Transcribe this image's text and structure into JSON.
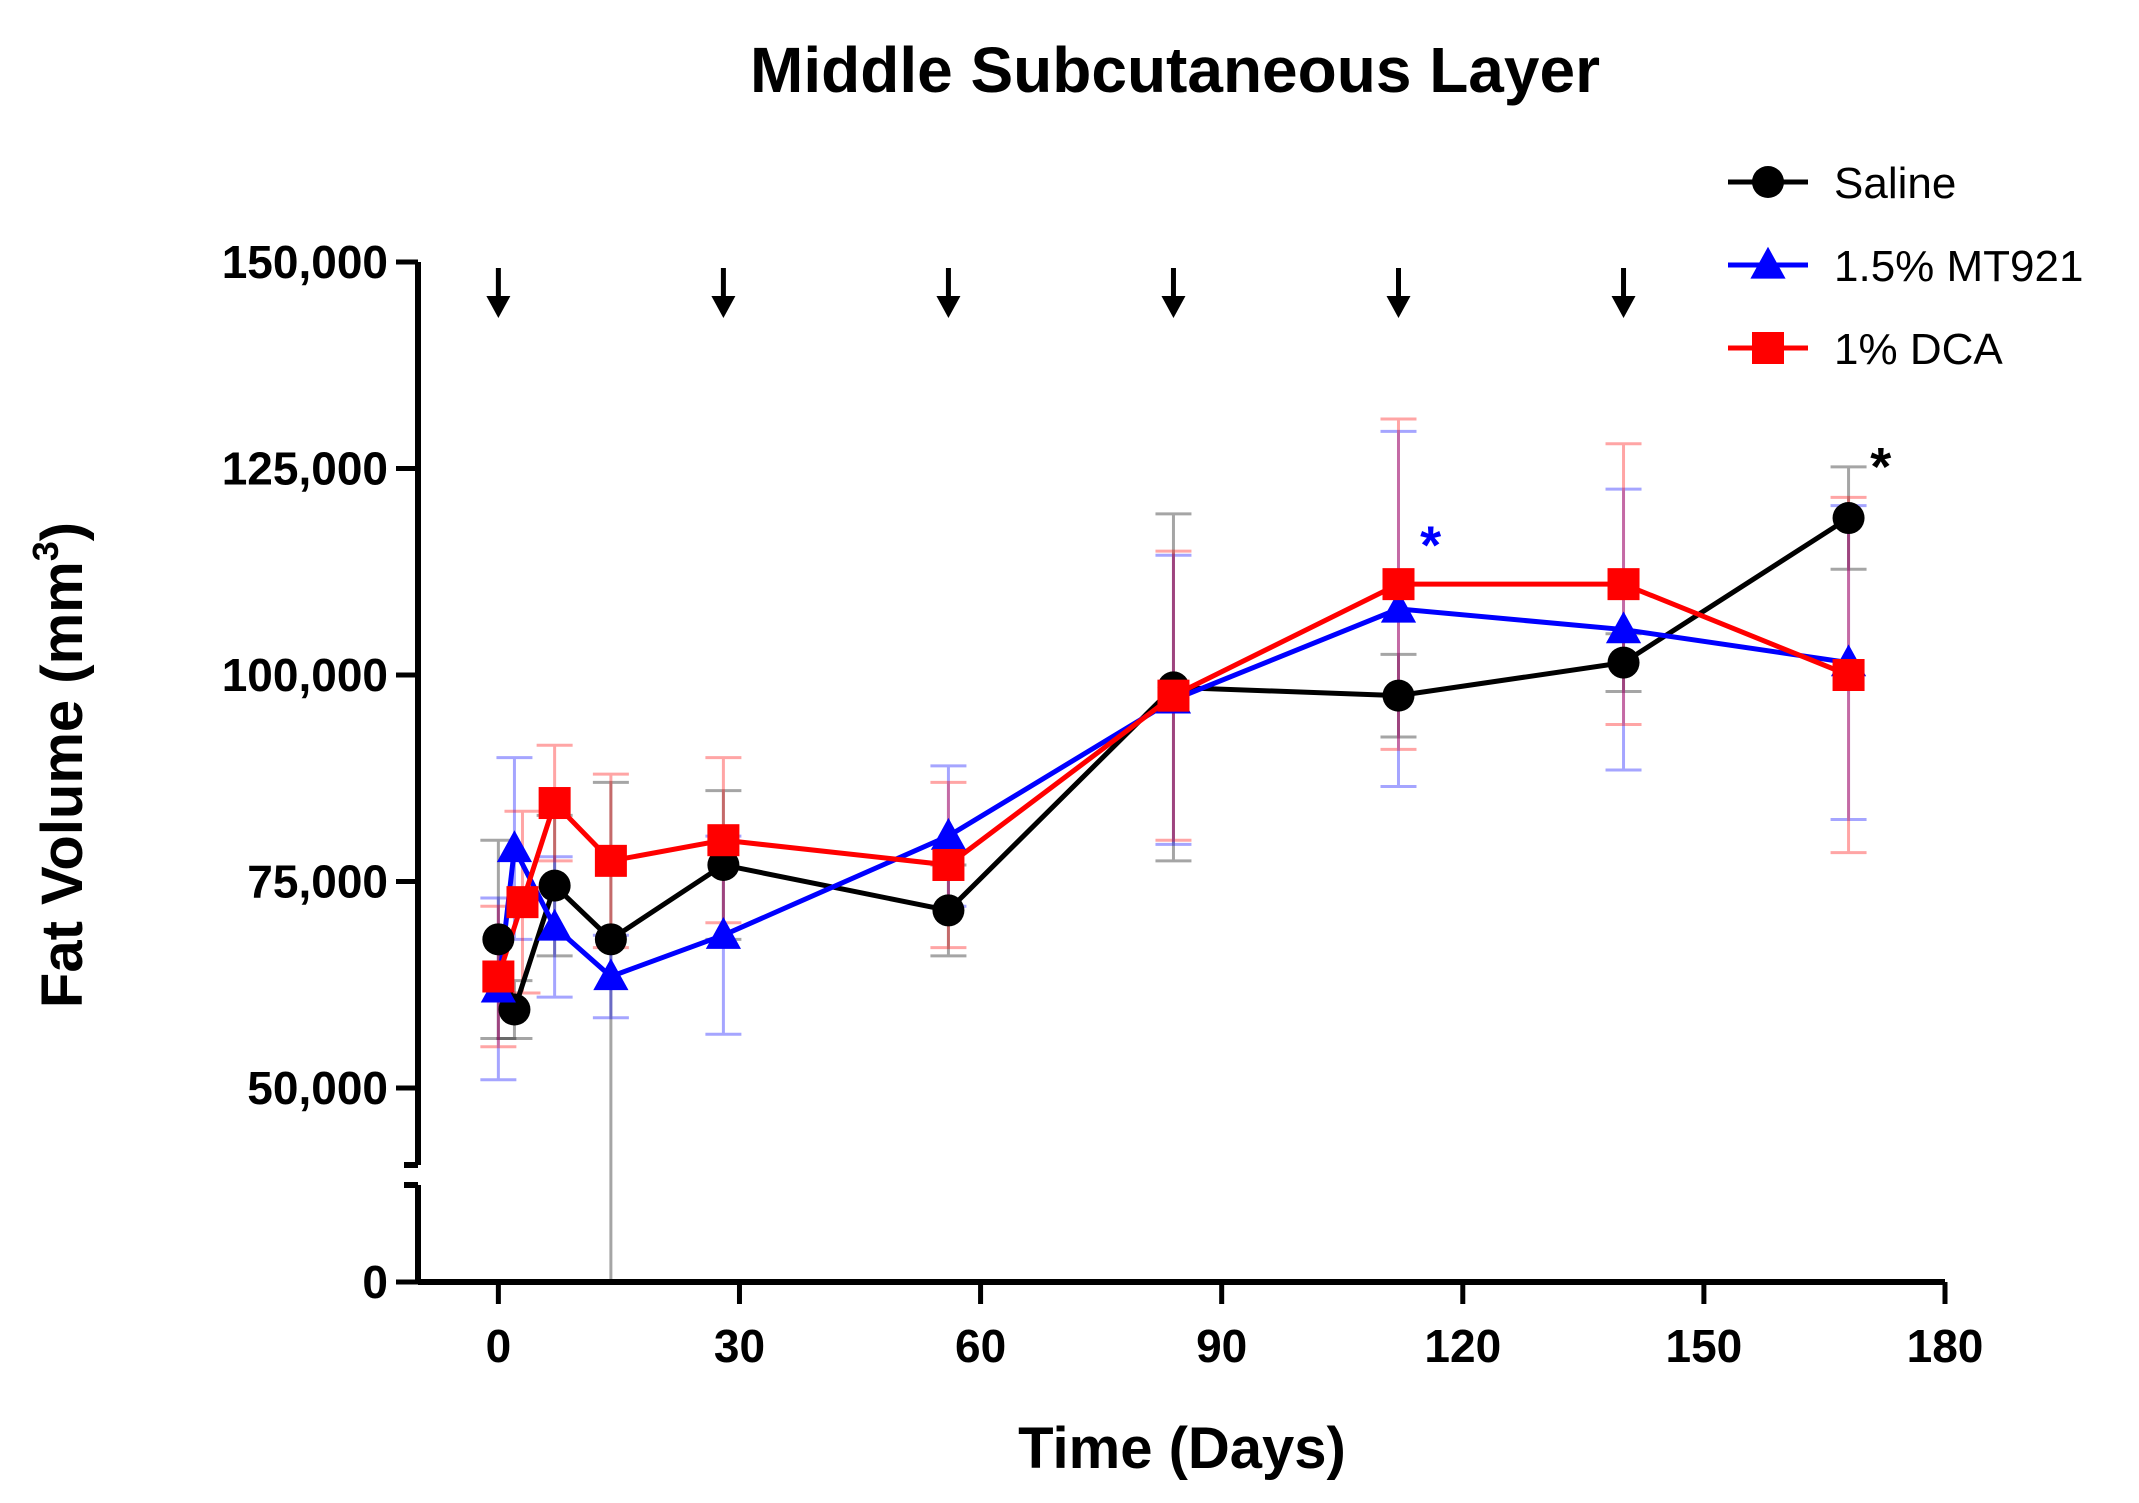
{
  "chart_data": {
    "type": "line",
    "title": "Middle Subcutaneous Layer",
    "xlabel": "Time (Days)",
    "ylabel_main": "Fat Volume (mm",
    "ylabel_superscript": "3",
    "ylabel_close": ")",
    "xlim": [
      -10,
      180
    ],
    "ylim": [
      0,
      150000
    ],
    "y_axis_break": [
      45000,
      50000
    ],
    "x_ticks": [
      0,
      30,
      60,
      90,
      120,
      150,
      180
    ],
    "x_tick_labels": [
      "0",
      "30",
      "60",
      "90",
      "120",
      "150",
      "180"
    ],
    "y_ticks": [
      0,
      50000,
      75000,
      100000,
      125000,
      150000
    ],
    "y_tick_labels": [
      "0",
      "50,000",
      "75,000",
      "100,000",
      "125,000",
      "150,000"
    ],
    "injection_days": [
      0,
      28,
      56,
      84,
      112,
      140
    ],
    "series": [
      {
        "name": "Saline",
        "color": "#000000",
        "marker": "circle",
        "x": [
          0,
          2,
          7,
          14,
          28,
          56,
          84,
          112,
          140,
          168
        ],
        "y": [
          68000,
          59500,
          74500,
          68000,
          77000,
          71500,
          98500,
          97500,
          101500,
          119000
        ],
        "err": [
          12000,
          3500,
          8500,
          19000,
          9000,
          5500,
          21000,
          5000,
          3500,
          6200
        ]
      },
      {
        "name": "1.5% MT921",
        "color": "#0000ff",
        "marker": "triangle",
        "x": [
          0,
          2,
          7,
          14,
          28,
          56,
          84,
          112,
          140,
          168
        ],
        "y": [
          62000,
          79000,
          69500,
          63500,
          68500,
          80500,
          97000,
          108000,
          105500,
          101500
        ],
        "err": [
          11000,
          11000,
          8500,
          5000,
          12000,
          8500,
          17500,
          21500,
          17000,
          19000
        ]
      },
      {
        "name": "1% DCA",
        "color": "#ff0000",
        "marker": "square",
        "x": [
          0,
          3,
          7,
          14,
          28,
          56,
          84,
          112,
          140,
          168
        ],
        "y": [
          63500,
          72500,
          84500,
          77500,
          80000,
          77000,
          97500,
          111000,
          111000,
          100000
        ],
        "err": [
          8500,
          11000,
          7000,
          10500,
          10000,
          10000,
          17500,
          20000,
          17000,
          21500
        ]
      }
    ],
    "annotations": [
      {
        "text": "*",
        "x": 116,
        "y": 113500,
        "color": "#0000ff"
      },
      {
        "text": "*",
        "x": 172,
        "y": 123000,
        "color": "#000000"
      }
    ],
    "legend_position": "top-right"
  }
}
